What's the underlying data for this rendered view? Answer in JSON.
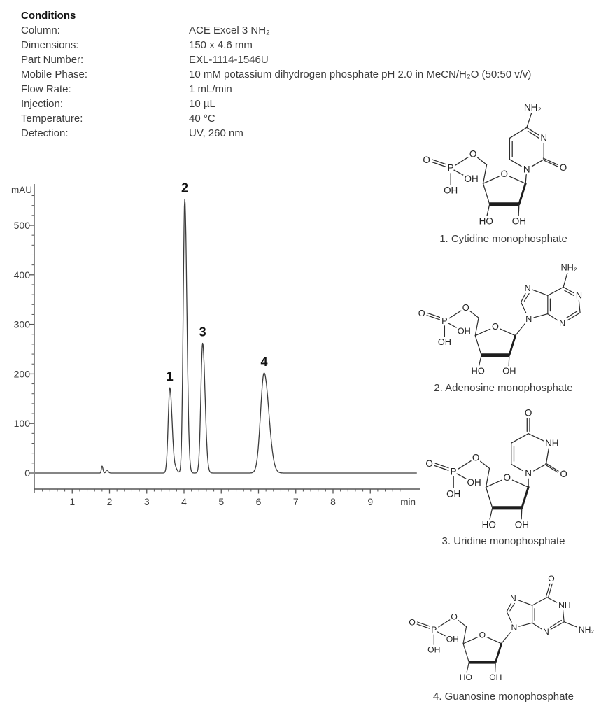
{
  "conditions": {
    "heading": "Conditions",
    "rows": [
      {
        "label": "Column:",
        "value": "ACE Excel 3 NH₂"
      },
      {
        "label": "Dimensions:",
        "value": "150 x 4.6 mm"
      },
      {
        "label": "Part Number:",
        "value": "EXL-1114-1546U"
      },
      {
        "label": "Mobile Phase:",
        "value": "10 mM potassium dihydrogen phosphate pH 2.0 in MeCN/H₂O (50:50 v/v)"
      },
      {
        "label": "Flow Rate:",
        "value": "1 mL/min"
      },
      {
        "label": "Injection:",
        "value": "10 µL"
      },
      {
        "label": "Temperature:",
        "value": "40 °C"
      },
      {
        "label": "Detection:",
        "value": "UV, 260 nm"
      }
    ]
  },
  "chart_data": {
    "type": "line",
    "title": "",
    "ylabel": "mAU",
    "xlabel": "min",
    "x_range_min": [
      0,
      10.25
    ],
    "y_range_mau": [
      -40,
      595
    ],
    "x_major_ticks": [
      1,
      2,
      3,
      4,
      5,
      6,
      7,
      8,
      9
    ],
    "x_minor_tick_step_min": 0.2,
    "y_major_ticks": [
      0,
      100,
      200,
      300,
      400,
      500
    ],
    "y_minor_tick_step_mau": 20,
    "grid": false,
    "trace_color": "#3c3c3c",
    "peaks": [
      {
        "label": "1",
        "compound": "Cytidine monophosphate",
        "rt_min": 3.62,
        "height_mau": 172,
        "sigma_min": 0.045
      },
      {
        "label": "2",
        "compound": "Adenosine monophosphate",
        "rt_min": 4.02,
        "height_mau": 553,
        "sigma_min": 0.042
      },
      {
        "label": "3",
        "compound": "Uridine monophosphate",
        "rt_min": 4.5,
        "height_mau": 262,
        "sigma_min": 0.048
      },
      {
        "label": "4",
        "compound": "Guanosine monophosphate",
        "rt_min": 6.15,
        "height_mau": 202,
        "sigma_min": 0.095
      }
    ],
    "baseline_features": [
      {
        "rt_min": 1.8,
        "height_mau": 14,
        "sigma_min": 0.018
      },
      {
        "rt_min": 1.93,
        "height_mau": 6,
        "sigma_min": 0.025
      },
      {
        "rt_min": 3.78,
        "height_mau": 7,
        "sigma_min": 0.035
      }
    ],
    "tail_factor": 1.35
  },
  "nucleotide": {
    "o_double": "O",
    "p": "P",
    "o_ester": "O",
    "oh_side": "OH",
    "oh_bottom": "OH",
    "o_ring": "O",
    "ho_left": "HO",
    "oh_right": "OH"
  },
  "compounds": [
    {
      "caption": "1. Cytidine monophosphate",
      "base": {
        "nh2": "NH₂",
        "n3": "N",
        "n1": "N",
        "o2": "O"
      }
    },
    {
      "caption": "2. Adenosine monophosphate",
      "base": {
        "nh2": "NH₂",
        "n7": "N",
        "n9": "N",
        "n1": "N",
        "n3": "N"
      }
    },
    {
      "caption": "3. Uridine monophosphate",
      "base": {
        "o4": "O",
        "n3h": "NH",
        "o2": "O",
        "n1": "N"
      }
    },
    {
      "caption": "4. Guanosine monophosphate",
      "base": {
        "o6": "O",
        "n1h": "NH",
        "nh2": "NH₂",
        "n7": "N",
        "n9": "N",
        "n3": "N"
      }
    }
  ]
}
